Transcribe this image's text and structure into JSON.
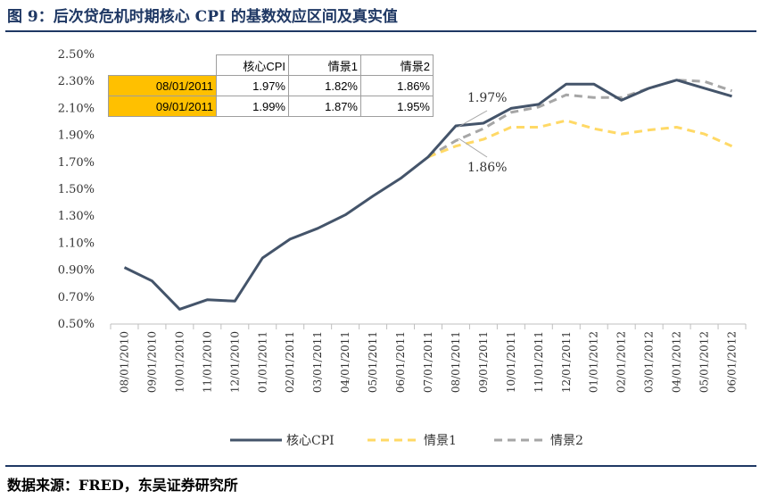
{
  "figure": {
    "title": "图 9：后次贷危机时期核心 CPI 的基数效应区间及真实值",
    "source": "数据来源：FRED，东吴证券研究所"
  },
  "table": {
    "headers": [
      "",
      "核心CPI",
      "情景1",
      "情景2"
    ],
    "rows": [
      {
        "label": "08/01/2011",
        "values": [
          "1.97%",
          "1.82%",
          "1.86%"
        ]
      },
      {
        "label": "09/01/2011",
        "values": [
          "1.99%",
          "1.87%",
          "1.95%"
        ]
      }
    ]
  },
  "annotations": [
    "1.97%",
    "1.86%"
  ],
  "chart_data": {
    "type": "line",
    "title": "",
    "xlabel": "",
    "ylabel": "",
    "ylim": [
      0.5,
      2.5
    ],
    "yticks": [
      "2.50%",
      "2.30%",
      "2.10%",
      "1.90%",
      "1.70%",
      "1.50%",
      "1.30%",
      "1.10%",
      "0.90%",
      "0.70%",
      "0.50%"
    ],
    "x": [
      "08/01/2010",
      "09/01/2010",
      "10/01/2010",
      "11/01/2010",
      "12/01/2010",
      "01/01/2011",
      "02/01/2011",
      "03/01/2011",
      "04/01/2011",
      "05/01/2011",
      "06/01/2011",
      "07/01/2011",
      "08/01/2011",
      "09/01/2011",
      "10/01/2011",
      "11/01/2011",
      "12/01/2011",
      "01/01/2012",
      "02/01/2012",
      "03/01/2012",
      "04/01/2012",
      "05/01/2012",
      "06/01/2012"
    ],
    "legend_position": "bottom",
    "grid": false,
    "series": [
      {
        "name": "核心CPI",
        "color": "#44546a",
        "dash": "solid",
        "values": [
          0.92,
          0.82,
          0.61,
          0.68,
          0.67,
          0.99,
          1.13,
          1.21,
          1.31,
          1.45,
          1.58,
          1.74,
          1.97,
          1.99,
          2.1,
          2.13,
          2.28,
          2.28,
          2.16,
          2.25,
          2.31,
          2.25,
          2.19
        ]
      },
      {
        "name": "情景1",
        "color": "#ffd966",
        "dash": "dashed",
        "values": [
          null,
          null,
          null,
          null,
          null,
          null,
          null,
          null,
          null,
          null,
          null,
          1.74,
          1.82,
          1.87,
          1.96,
          1.96,
          2.01,
          1.95,
          1.91,
          1.94,
          1.96,
          1.91,
          1.82
        ]
      },
      {
        "name": "情景2",
        "color": "#a6a6a6",
        "dash": "dashed",
        "values": [
          null,
          null,
          null,
          null,
          null,
          null,
          null,
          null,
          null,
          null,
          null,
          1.74,
          1.86,
          1.95,
          2.07,
          2.11,
          2.2,
          2.18,
          2.18,
          2.25,
          2.31,
          2.3,
          2.23
        ]
      }
    ]
  }
}
